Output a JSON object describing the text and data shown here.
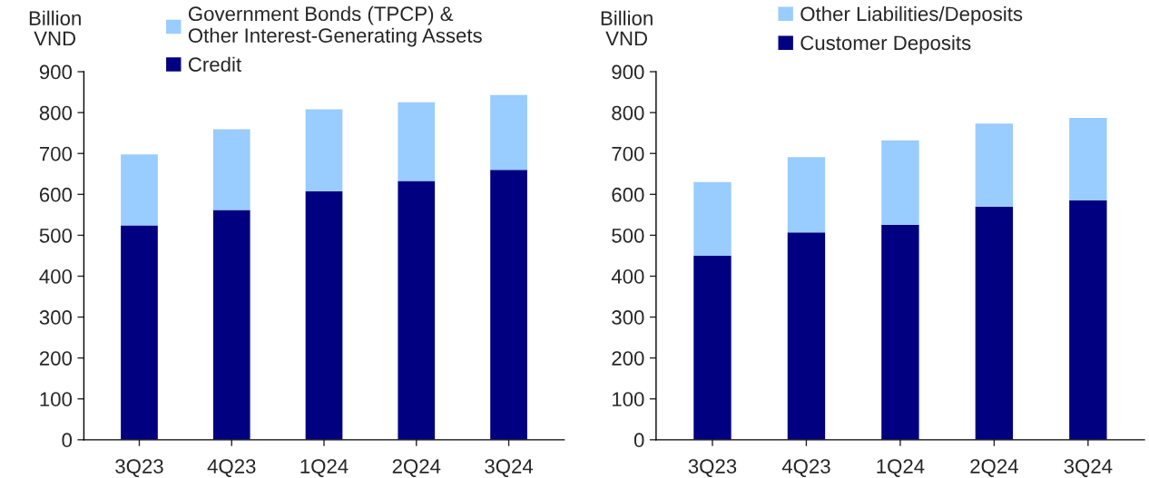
{
  "chart_data": [
    {
      "type": "bar",
      "stacked": true,
      "ylabel": "Billion\nVND",
      "categories": [
        "3Q23",
        "4Q23",
        "1Q24",
        "2Q24",
        "3Q24"
      ],
      "ylim": [
        0,
        900
      ],
      "yticks": [
        0,
        100,
        200,
        300,
        400,
        500,
        600,
        700,
        800,
        900
      ],
      "grid": false,
      "legend": "top",
      "series": [
        {
          "name": "Credit",
          "color": "#000080",
          "values": [
            524,
            562,
            608,
            633,
            660
          ]
        },
        {
          "name": "Government Bonds (TPCP) &\nOther Interest-Generating Assets",
          "color": "#99ccff",
          "values": [
            174,
            197,
            200,
            192,
            183
          ]
        }
      ]
    },
    {
      "type": "bar",
      "stacked": true,
      "ylabel": "Billion\nVND",
      "categories": [
        "3Q23",
        "4Q23",
        "1Q24",
        "2Q24",
        "3Q24"
      ],
      "ylim": [
        0,
        900
      ],
      "yticks": [
        0,
        100,
        200,
        300,
        400,
        500,
        600,
        700,
        800,
        900
      ],
      "grid": false,
      "legend": "top",
      "series": [
        {
          "name": "Customer Deposits",
          "color": "#000080",
          "values": [
            450,
            507,
            526,
            570,
            585
          ]
        },
        {
          "name": "Other Liabilities/Deposits",
          "color": "#99ccff",
          "values": [
            180,
            184,
            206,
            203,
            202
          ]
        }
      ]
    }
  ]
}
